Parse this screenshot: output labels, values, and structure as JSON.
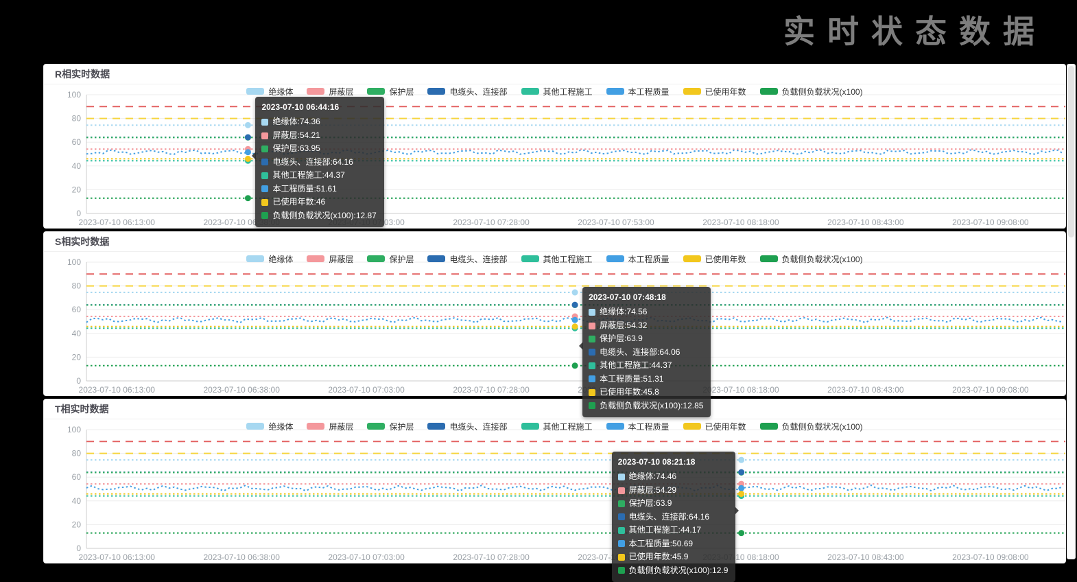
{
  "page": {
    "title": "实时状态数据",
    "background": "#000000"
  },
  "chart_data": [
    {
      "type": "line",
      "title": "R相实时数据",
      "x_labels": [
        "2023-07-10 06:13:00",
        "2023-07-10 06:38:00",
        "2023-07-10 07:03:00",
        "2023-07-10 07:28:00",
        "2023-07-10 07:53:00",
        "2023-07-10 08:18:00",
        "2023-07-10 08:43:00",
        "2023-07-10 09:08:00"
      ],
      "y_ticks": [
        0,
        20,
        40,
        60,
        80,
        100
      ],
      "ylim": [
        0,
        100
      ],
      "grid": true,
      "legend_position": "top-center",
      "thresholds": [
        {
          "value": 90,
          "color": "#e46262"
        },
        {
          "value": 80,
          "color": "#f6d53f"
        }
      ],
      "series": [
        {
          "name": "绝缘体",
          "color": "#a7d8f1",
          "value": 74.36,
          "marker_dotted": true
        },
        {
          "name": "屏蔽层",
          "color": "#f4989c",
          "value": 54.21,
          "marker_dotted": true
        },
        {
          "name": "保护层",
          "color": "#2fae62",
          "value": 63.95
        },
        {
          "name": "电缆头、连接部",
          "color": "#2b6cb0",
          "value": 64.16
        },
        {
          "name": "其他工程施工",
          "color": "#2fbf9b",
          "value": 44.37
        },
        {
          "name": "本工程质量",
          "color": "#429fe3",
          "value": 51.61,
          "noisy": true
        },
        {
          "name": "已使用年数",
          "color": "#f2c71d",
          "value": 46
        },
        {
          "name": "负载侧负载状况(x100)",
          "color": "#1ea050",
          "value": 12.87
        }
      ],
      "tooltip": {
        "time": "2023-07-10 06:44:16",
        "x_frac": 0.165,
        "side": "right"
      }
    },
    {
      "type": "line",
      "title": "S相实时数据",
      "x_labels": [
        "2023-07-10 06:13:00",
        "2023-07-10 06:38:00",
        "2023-07-10 07:03:00",
        "2023-07-10 07:28:00",
        "2023-07-10 07:53:00",
        "2023-07-10 08:18:00",
        "2023-07-10 08:43:00",
        "2023-07-10 09:08:00"
      ],
      "y_ticks": [
        0,
        20,
        40,
        60,
        80,
        100
      ],
      "ylim": [
        0,
        100
      ],
      "grid": true,
      "legend_position": "top-center",
      "thresholds": [
        {
          "value": 90,
          "color": "#e46262"
        },
        {
          "value": 80,
          "color": "#f6d53f"
        }
      ],
      "series": [
        {
          "name": "绝缘体",
          "color": "#a7d8f1",
          "value": 74.56,
          "marker_dotted": true
        },
        {
          "name": "屏蔽层",
          "color": "#f4989c",
          "value": 54.32,
          "marker_dotted": true
        },
        {
          "name": "保护层",
          "color": "#2fae62",
          "value": 63.9
        },
        {
          "name": "电缆头、连接部",
          "color": "#2b6cb0",
          "value": 64.06
        },
        {
          "name": "其他工程施工",
          "color": "#2fbf9b",
          "value": 44.37
        },
        {
          "name": "本工程质量",
          "color": "#429fe3",
          "value": 51.31,
          "noisy": true
        },
        {
          "name": "已使用年数",
          "color": "#f2c71d",
          "value": 45.8
        },
        {
          "name": "负载侧负载状况(x100)",
          "color": "#1ea050",
          "value": 12.85
        }
      ],
      "tooltip": {
        "time": "2023-07-10 07:48:18",
        "x_frac": 0.499,
        "side": "right"
      }
    },
    {
      "type": "line",
      "title": "T相实时数据",
      "x_labels": [
        "2023-07-10 06:13:00",
        "2023-07-10 06:38:00",
        "2023-07-10 07:03:00",
        "2023-07-10 07:28:00",
        "2023-07-10 07:53:00",
        "2023-07-10 08:18:00",
        "2023-07-10 08:43:00",
        "2023-07-10 09:08:00"
      ],
      "y_ticks": [
        0,
        20,
        40,
        60,
        80,
        100
      ],
      "ylim": [
        0,
        100
      ],
      "grid": true,
      "legend_position": "top-center",
      "thresholds": [
        {
          "value": 90,
          "color": "#e46262"
        },
        {
          "value": 80,
          "color": "#f6d53f"
        }
      ],
      "series": [
        {
          "name": "绝缘体",
          "color": "#a7d8f1",
          "value": 74.46,
          "marker_dotted": true
        },
        {
          "name": "屏蔽层",
          "color": "#f4989c",
          "value": 54.29,
          "marker_dotted": true
        },
        {
          "name": "保护层",
          "color": "#2fae62",
          "value": 63.9
        },
        {
          "name": "电缆头、连接部",
          "color": "#2b6cb0",
          "value": 64.16
        },
        {
          "name": "其他工程施工",
          "color": "#2fbf9b",
          "value": 44.17
        },
        {
          "name": "本工程质量",
          "color": "#429fe3",
          "value": 50.69,
          "noisy": true
        },
        {
          "name": "已使用年数",
          "color": "#f2c71d",
          "value": 45.9
        },
        {
          "name": "负载侧负载状况(x100)",
          "color": "#1ea050",
          "value": 12.9
        }
      ],
      "tooltip": {
        "time": "2023-07-10 08:21:18",
        "x_frac": 0.669,
        "side": "left"
      }
    }
  ]
}
